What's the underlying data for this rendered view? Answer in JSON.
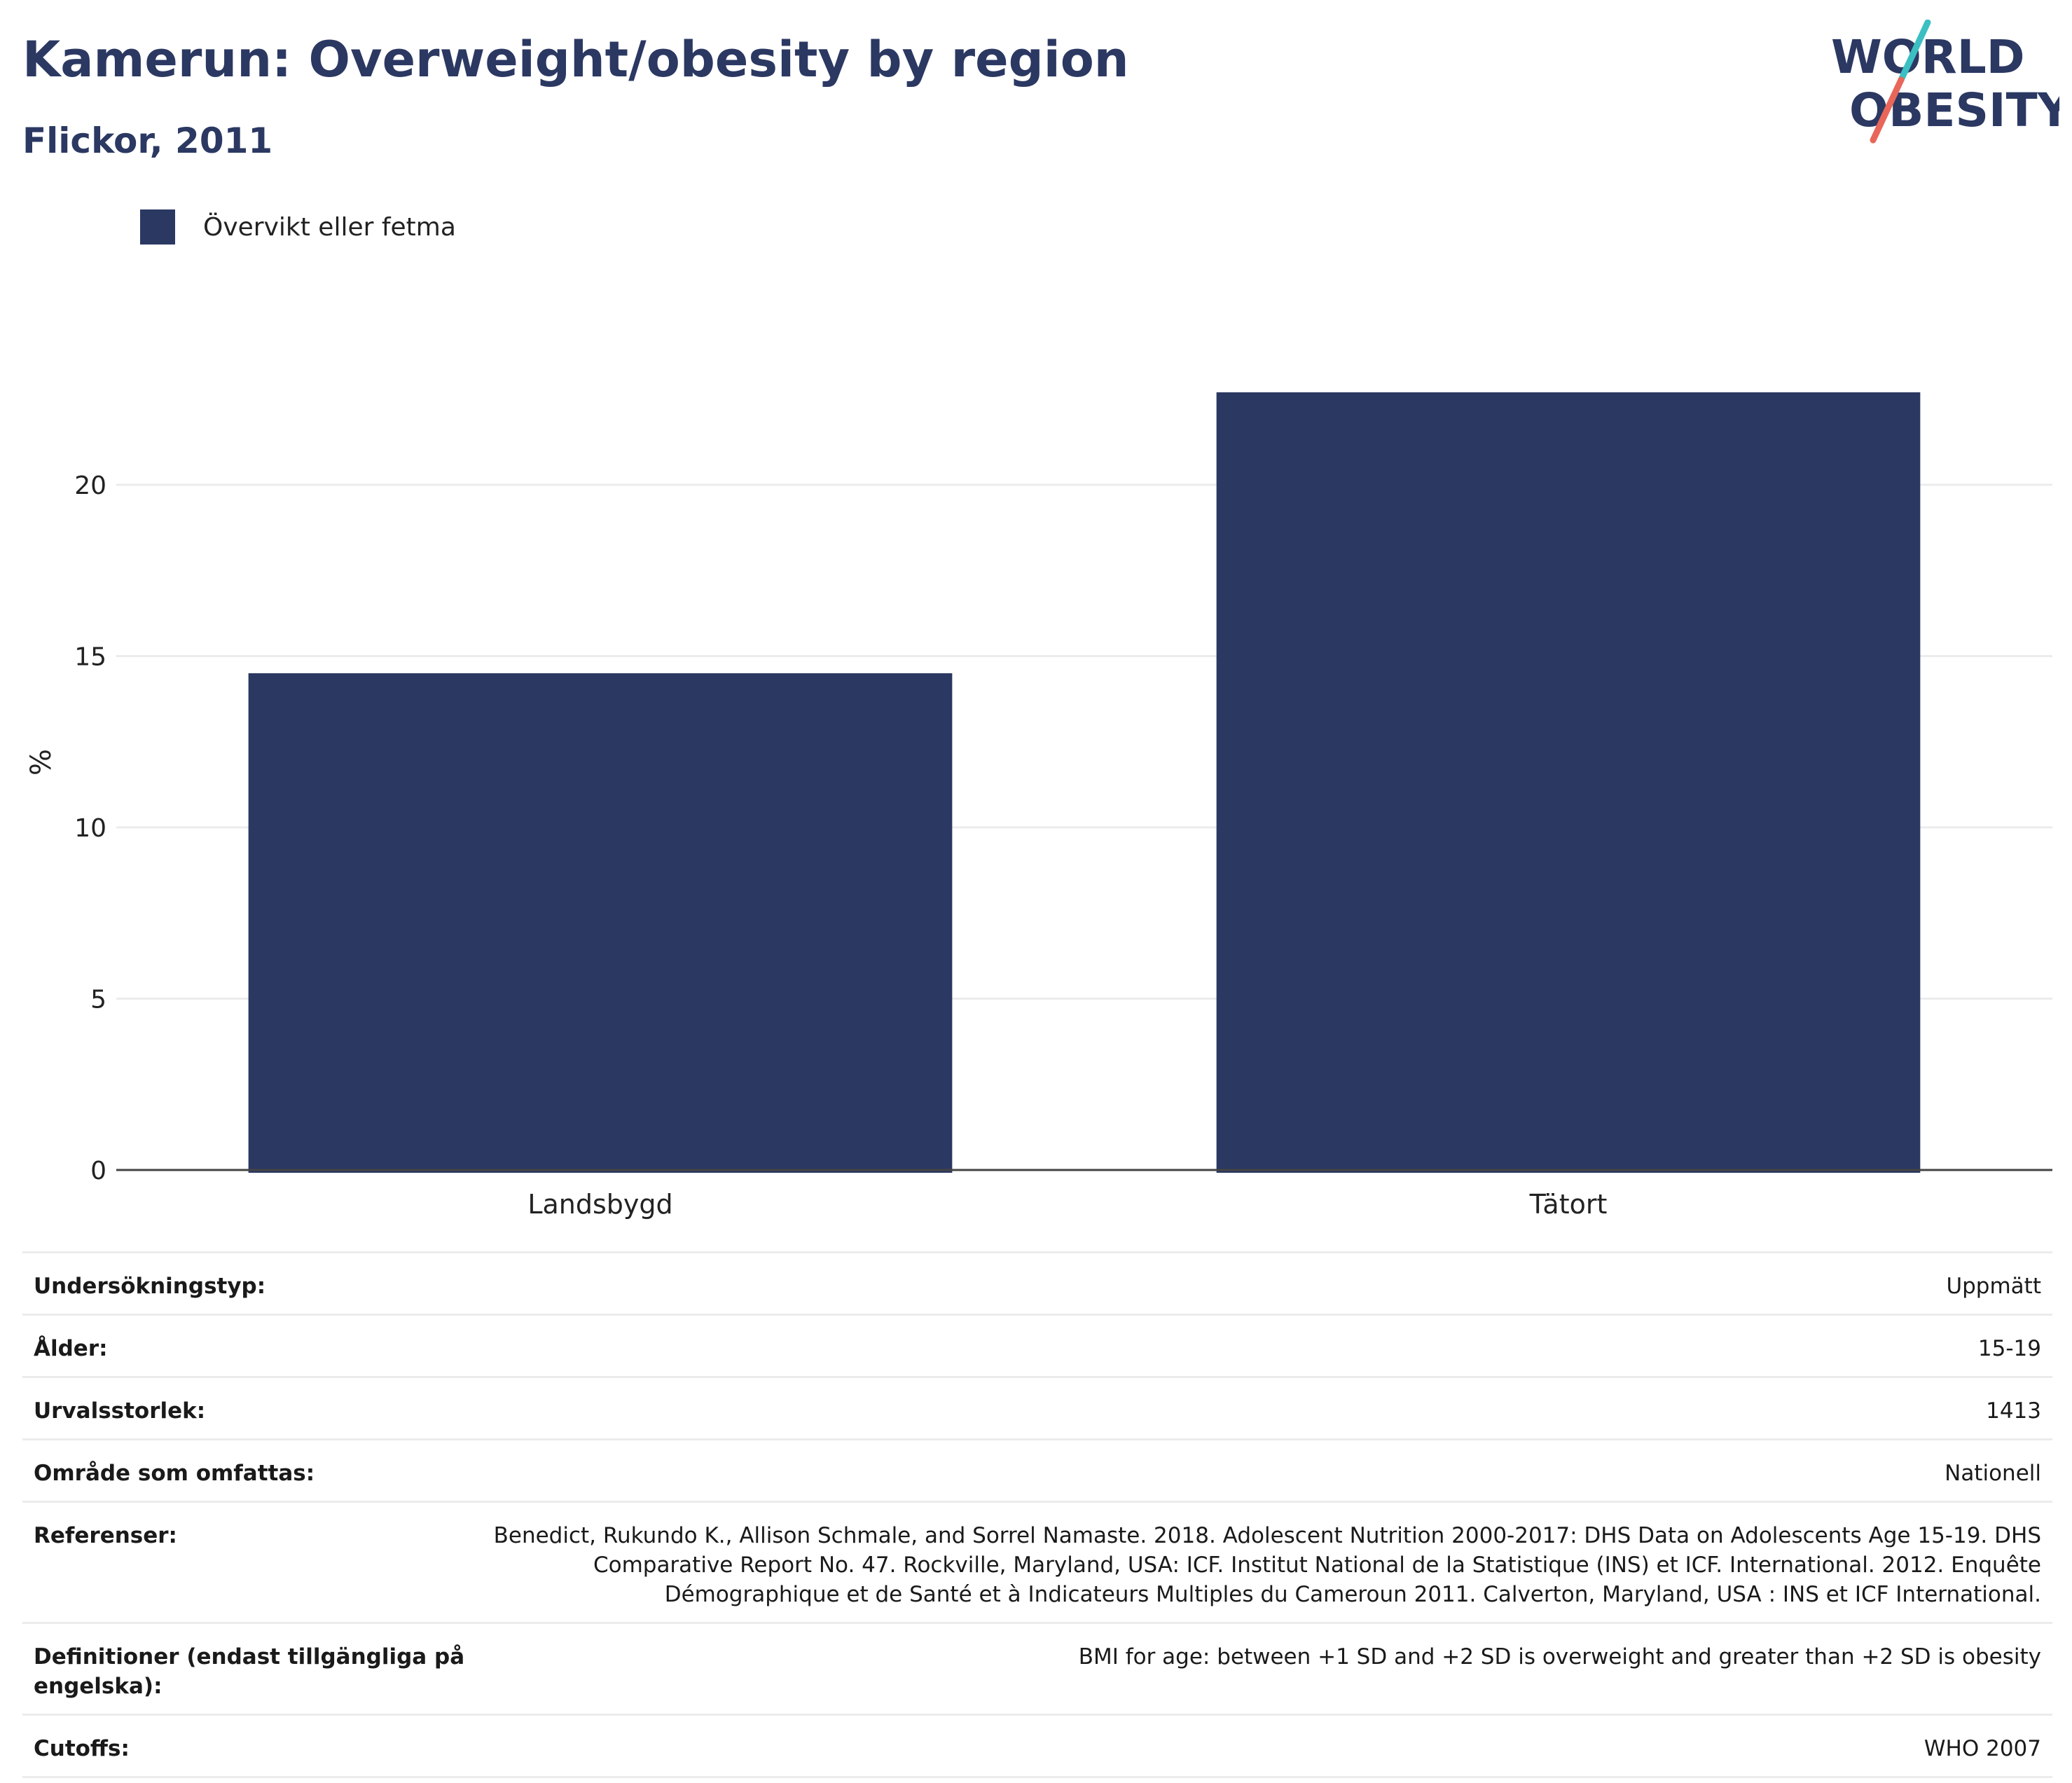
{
  "header": {
    "title": "Kamerun: Overweight/obesity by region",
    "subtitle": "Flickor, 2011"
  },
  "logo": {
    "line1": "WORLD",
    "line2": "OBESITY",
    "colors": {
      "text": "#2b3862",
      "slash_top": "#3bbfc3",
      "slash_bottom": "#e8675a"
    }
  },
  "colors": {
    "bar": "#2b3862",
    "grid": "#ececec",
    "axis": "#444444"
  },
  "chart_data": {
    "type": "bar",
    "categories": [
      "Landsbygd",
      "Tätort"
    ],
    "series": [
      {
        "name": "Övervikt eller fetma",
        "values": [
          14.5,
          22.7
        ]
      }
    ],
    "title": "Kamerun: Overweight/obesity by region",
    "subtitle": "Flickor, 2011",
    "xlabel": "",
    "ylabel": "%",
    "ylim": [
      0,
      24
    ],
    "yticks": [
      0,
      5,
      10,
      15,
      20
    ],
    "grid": true,
    "legend": "top-left"
  },
  "info": {
    "rows": [
      {
        "key": "Undersökningstyp:",
        "value": "Uppmätt"
      },
      {
        "key": "Ålder:",
        "value": "15-19"
      },
      {
        "key": "Urvalsstorlek:",
        "value": "1413"
      },
      {
        "key": "Område som omfattas:",
        "value": "Nationell"
      },
      {
        "key": "Referenser:",
        "value": "Benedict, Rukundo K., Allison Schmale, and Sorrel Namaste. 2018. Adolescent Nutrition 2000-2017: DHS Data on Adolescents Age 15-19. DHS Comparative Report No. 47. Rockville, Maryland, USA: ICF. Institut National de la Statistique (INS) et ICF. International. 2012. Enquête Démographique et de Santé et à Indicateurs Multiples du Cameroun 2011. Calverton, Maryland, USA : INS et ICF International."
      },
      {
        "key": "Definitioner (endast tillgängliga på engelska):",
        "value": "BMI for age: between +1 SD and +2 SD is overweight and greater than +2 SD is obesity"
      },
      {
        "key": "Cutoffs:",
        "value": "WHO 2007"
      }
    ]
  }
}
